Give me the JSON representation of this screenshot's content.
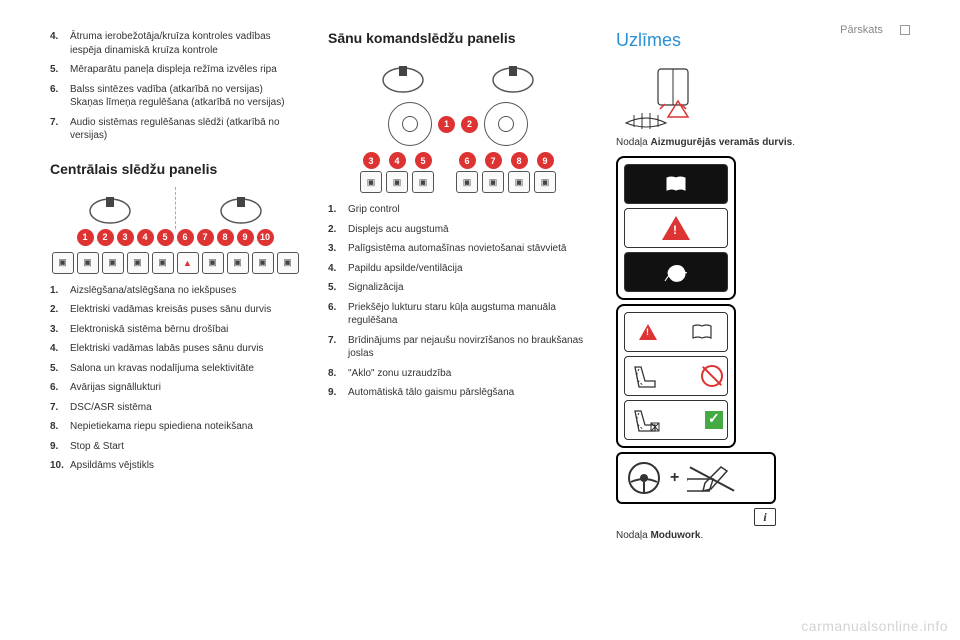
{
  "header": {
    "section": "Pārskats"
  },
  "col1": {
    "top_list": [
      {
        "n": "4.",
        "t": "Ātruma ierobežotāja/kruīza kontroles vadības iespēja dinamiskā kruīza kontrole"
      },
      {
        "n": "5.",
        "t": "Mēraparātu paneļa displeja režīma izvēles ripa"
      },
      {
        "n": "6.",
        "t": "Balss sintēzes vadība (atkarībā no versijas)\nSkaņas līmeņa regulēšana (atkarībā no versijas)"
      },
      {
        "n": "7.",
        "t": "Audio sistēmas regulēšanas slēdži (atkarībā no versijas)"
      }
    ],
    "section_title": "Centrālais slēdžu panelis",
    "central_badges": [
      "1",
      "2",
      "3",
      "4",
      "5",
      "6",
      "7",
      "8",
      "9",
      "10"
    ],
    "central_list": [
      {
        "n": "1.",
        "t": "Aizslēgšana/atslēgšana no iekšpuses"
      },
      {
        "n": "2.",
        "t": "Elektriski vadāmas kreisās puses sānu durvis"
      },
      {
        "n": "3.",
        "t": "Elektroniskā sistēma bērnu drošībai"
      },
      {
        "n": "4.",
        "t": "Elektriski vadāmas labās puses sānu durvis"
      },
      {
        "n": "5.",
        "t": "Salona un kravas nodalījuma selektivitāte"
      },
      {
        "n": "6.",
        "t": "Avārijas signāllukturi"
      },
      {
        "n": "7.",
        "t": "DSC/ASR sistēma"
      },
      {
        "n": "8.",
        "t": "Nepietiekama riepu spiediena noteikšana"
      },
      {
        "n": "9.",
        "t": "Stop & Start"
      },
      {
        "n": "10.",
        "t": "Apsildāms vējstikls"
      }
    ]
  },
  "col2": {
    "section_title": "Sānu komandslēdžu panelis",
    "side_badges": [
      "1",
      "2",
      "3",
      "4",
      "5",
      "6",
      "7",
      "8",
      "9"
    ],
    "side_list": [
      {
        "n": "1.",
        "t": "Grip control"
      },
      {
        "n": "2.",
        "t": "Displejs acu augstumā"
      },
      {
        "n": "3.",
        "t": "Palīgsistēma automašīnas novietošanai stāvvietā"
      },
      {
        "n": "4.",
        "t": "Papildu apsilde/ventilācija"
      },
      {
        "n": "5.",
        "t": "Signalizācija"
      },
      {
        "n": "6.",
        "t": "Priekšējo lukturu staru kūļa augstuma manuāla regulēšana"
      },
      {
        "n": "7.",
        "t": "Brīdinājums par nejaušu novirzīšanos no braukšanas joslas"
      },
      {
        "n": "8.",
        "t": "\"Aklo\" zonu uzraudzība"
      },
      {
        "n": "9.",
        "t": "Automātiskā tālo gaismu pārslēgšana"
      }
    ]
  },
  "col3": {
    "heading": "Uzlīmes",
    "note1_prefix": "Nodaļa ",
    "note1_bold": "Aizmugurējās veramās durvis",
    "note1_suffix": ".",
    "note2_prefix": "Nodaļa ",
    "note2_bold": "Moduwork",
    "note2_suffix": "."
  },
  "watermark": "carmanualsonline.info",
  "colors": {
    "badge_red": "#d33",
    "accent_blue": "#2a8fd6",
    "ok_green": "#4a4"
  }
}
